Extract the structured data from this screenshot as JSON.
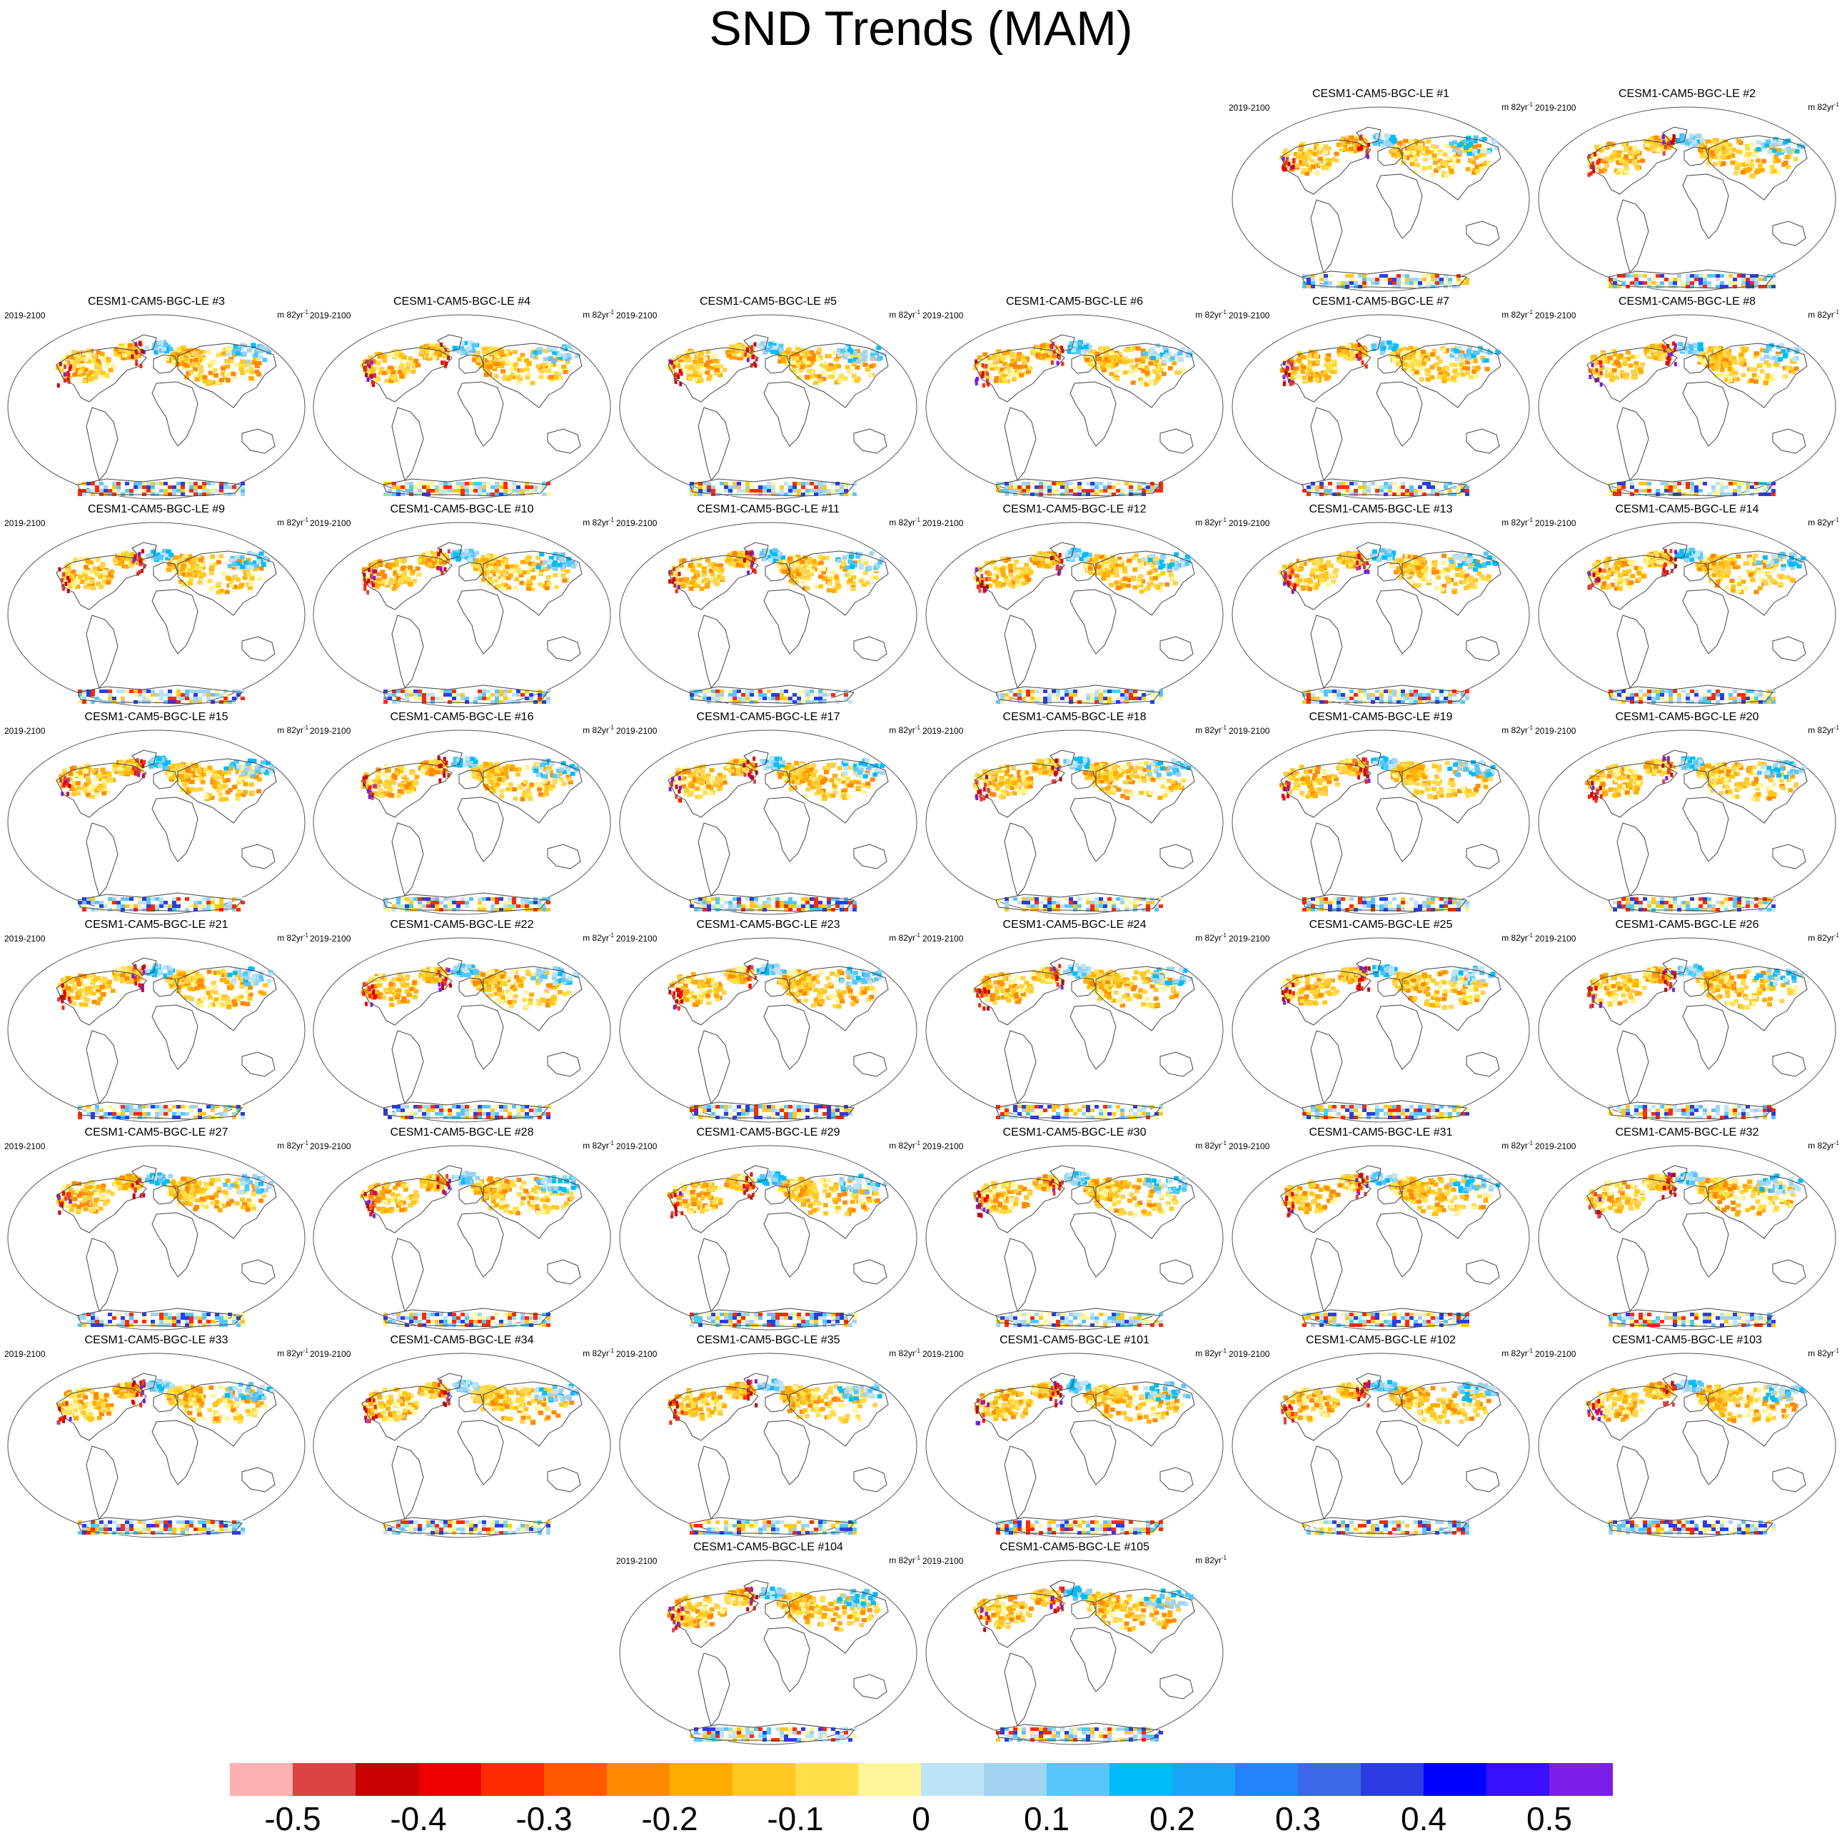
{
  "title": "SND Trends (MAM)",
  "period_label": "2019-2100",
  "units_label": "m 82yr",
  "units_exponent": "-1",
  "panel_title_prefix": "CESM1-CAM5-BGC-LE",
  "members": [
    "#1",
    "#2",
    "#3",
    "#4",
    "#5",
    "#6",
    "#7",
    "#8",
    "#9",
    "#10",
    "#11",
    "#12",
    "#13",
    "#14",
    "#15",
    "#16",
    "#17",
    "#18",
    "#19",
    "#20",
    "#21",
    "#22",
    "#23",
    "#24",
    "#25",
    "#26",
    "#27",
    "#28",
    "#29",
    "#30",
    "#31",
    "#32",
    "#33",
    "#34",
    "#35",
    "#101",
    "#102",
    "#103",
    "#104",
    "#105"
  ],
  "colorbar": {
    "colors": [
      "#fdb0b0",
      "#dc4343",
      "#c80000",
      "#ee0000",
      "#ff2a00",
      "#ff5a00",
      "#ff8a00",
      "#ffad00",
      "#ffc81e",
      "#ffe04a",
      "#fff59a",
      "#bde4f6",
      "#9fd3ef",
      "#57c6f8",
      "#00bcf8",
      "#19a5f8",
      "#2283f8",
      "#3a68e8",
      "#2b3de2",
      "#0000ff",
      "#3a10ff",
      "#7b1fe8"
    ],
    "labels": [
      "-0.5",
      "-0.4",
      "-0.3",
      "-0.2",
      "-0.1",
      "0",
      "0.1",
      "0.2",
      "0.3",
      "0.4",
      "0.5"
    ]
  }
}
